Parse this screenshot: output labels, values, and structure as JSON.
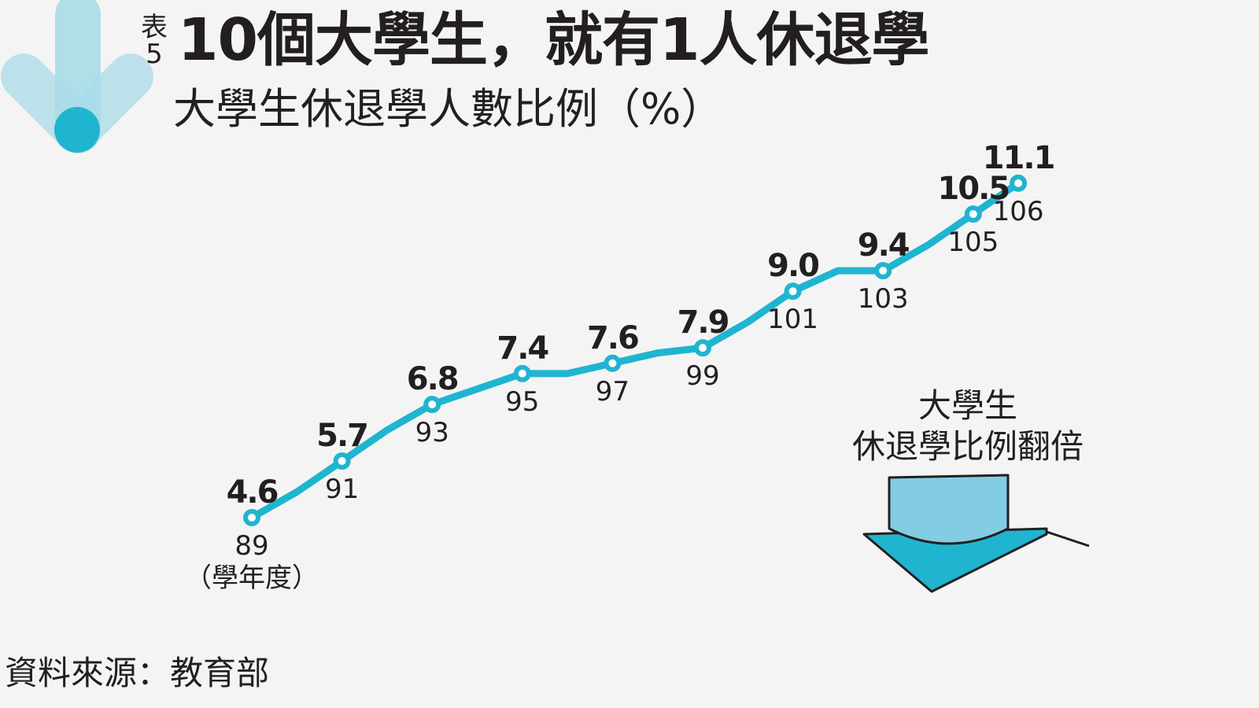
{
  "header": {
    "table_label_char": "表",
    "table_number": "5",
    "title": "10個大學生，就有1人休退學",
    "subtitle": "大學生休退學人數比例（%）"
  },
  "chart_data": {
    "type": "line",
    "title": "10個大學生，就有1人休退學",
    "subtitle": "大學生休退學人數比例（%）",
    "x_unit_label": "（學年度）",
    "x_label_values": [
      "89",
      "91",
      "93",
      "95",
      "97",
      "99",
      "101",
      "103",
      "105",
      "106"
    ],
    "x": [
      89,
      90,
      91,
      92,
      93,
      94,
      95,
      96,
      97,
      98,
      99,
      100,
      101,
      102,
      103,
      104,
      105,
      106
    ],
    "y": [
      4.6,
      5.1,
      5.7,
      6.3,
      6.8,
      7.1,
      7.4,
      7.4,
      7.6,
      7.8,
      7.9,
      8.4,
      9.0,
      9.4,
      9.4,
      9.9,
      10.5,
      11.1
    ],
    "labeled_points": [
      {
        "x": 89,
        "value": "4.6"
      },
      {
        "x": 91,
        "value": "5.7"
      },
      {
        "x": 93,
        "value": "6.8"
      },
      {
        "x": 95,
        "value": "7.4"
      },
      {
        "x": 97,
        "value": "7.6"
      },
      {
        "x": 99,
        "value": "7.9"
      },
      {
        "x": 101,
        "value": "9.0"
      },
      {
        "x": 103,
        "value": "9.4"
      },
      {
        "x": 105,
        "value": "10.5"
      },
      {
        "x": 106,
        "value": "11.1"
      }
    ],
    "line_color": "#1fb5d0",
    "grid": false,
    "legend": "none"
  },
  "callout": {
    "line1": "大學生",
    "line2": "休退學比例翻倍"
  },
  "source": "資料來源：教育部",
  "colors": {
    "background": "#f4f4f4",
    "accent": "#1fb5d0",
    "cap_light": "#82cde3",
    "text": "#231f20"
  },
  "icons": {
    "logo": "down-arrow-logo",
    "illustration": "graduation-cap-icon"
  }
}
